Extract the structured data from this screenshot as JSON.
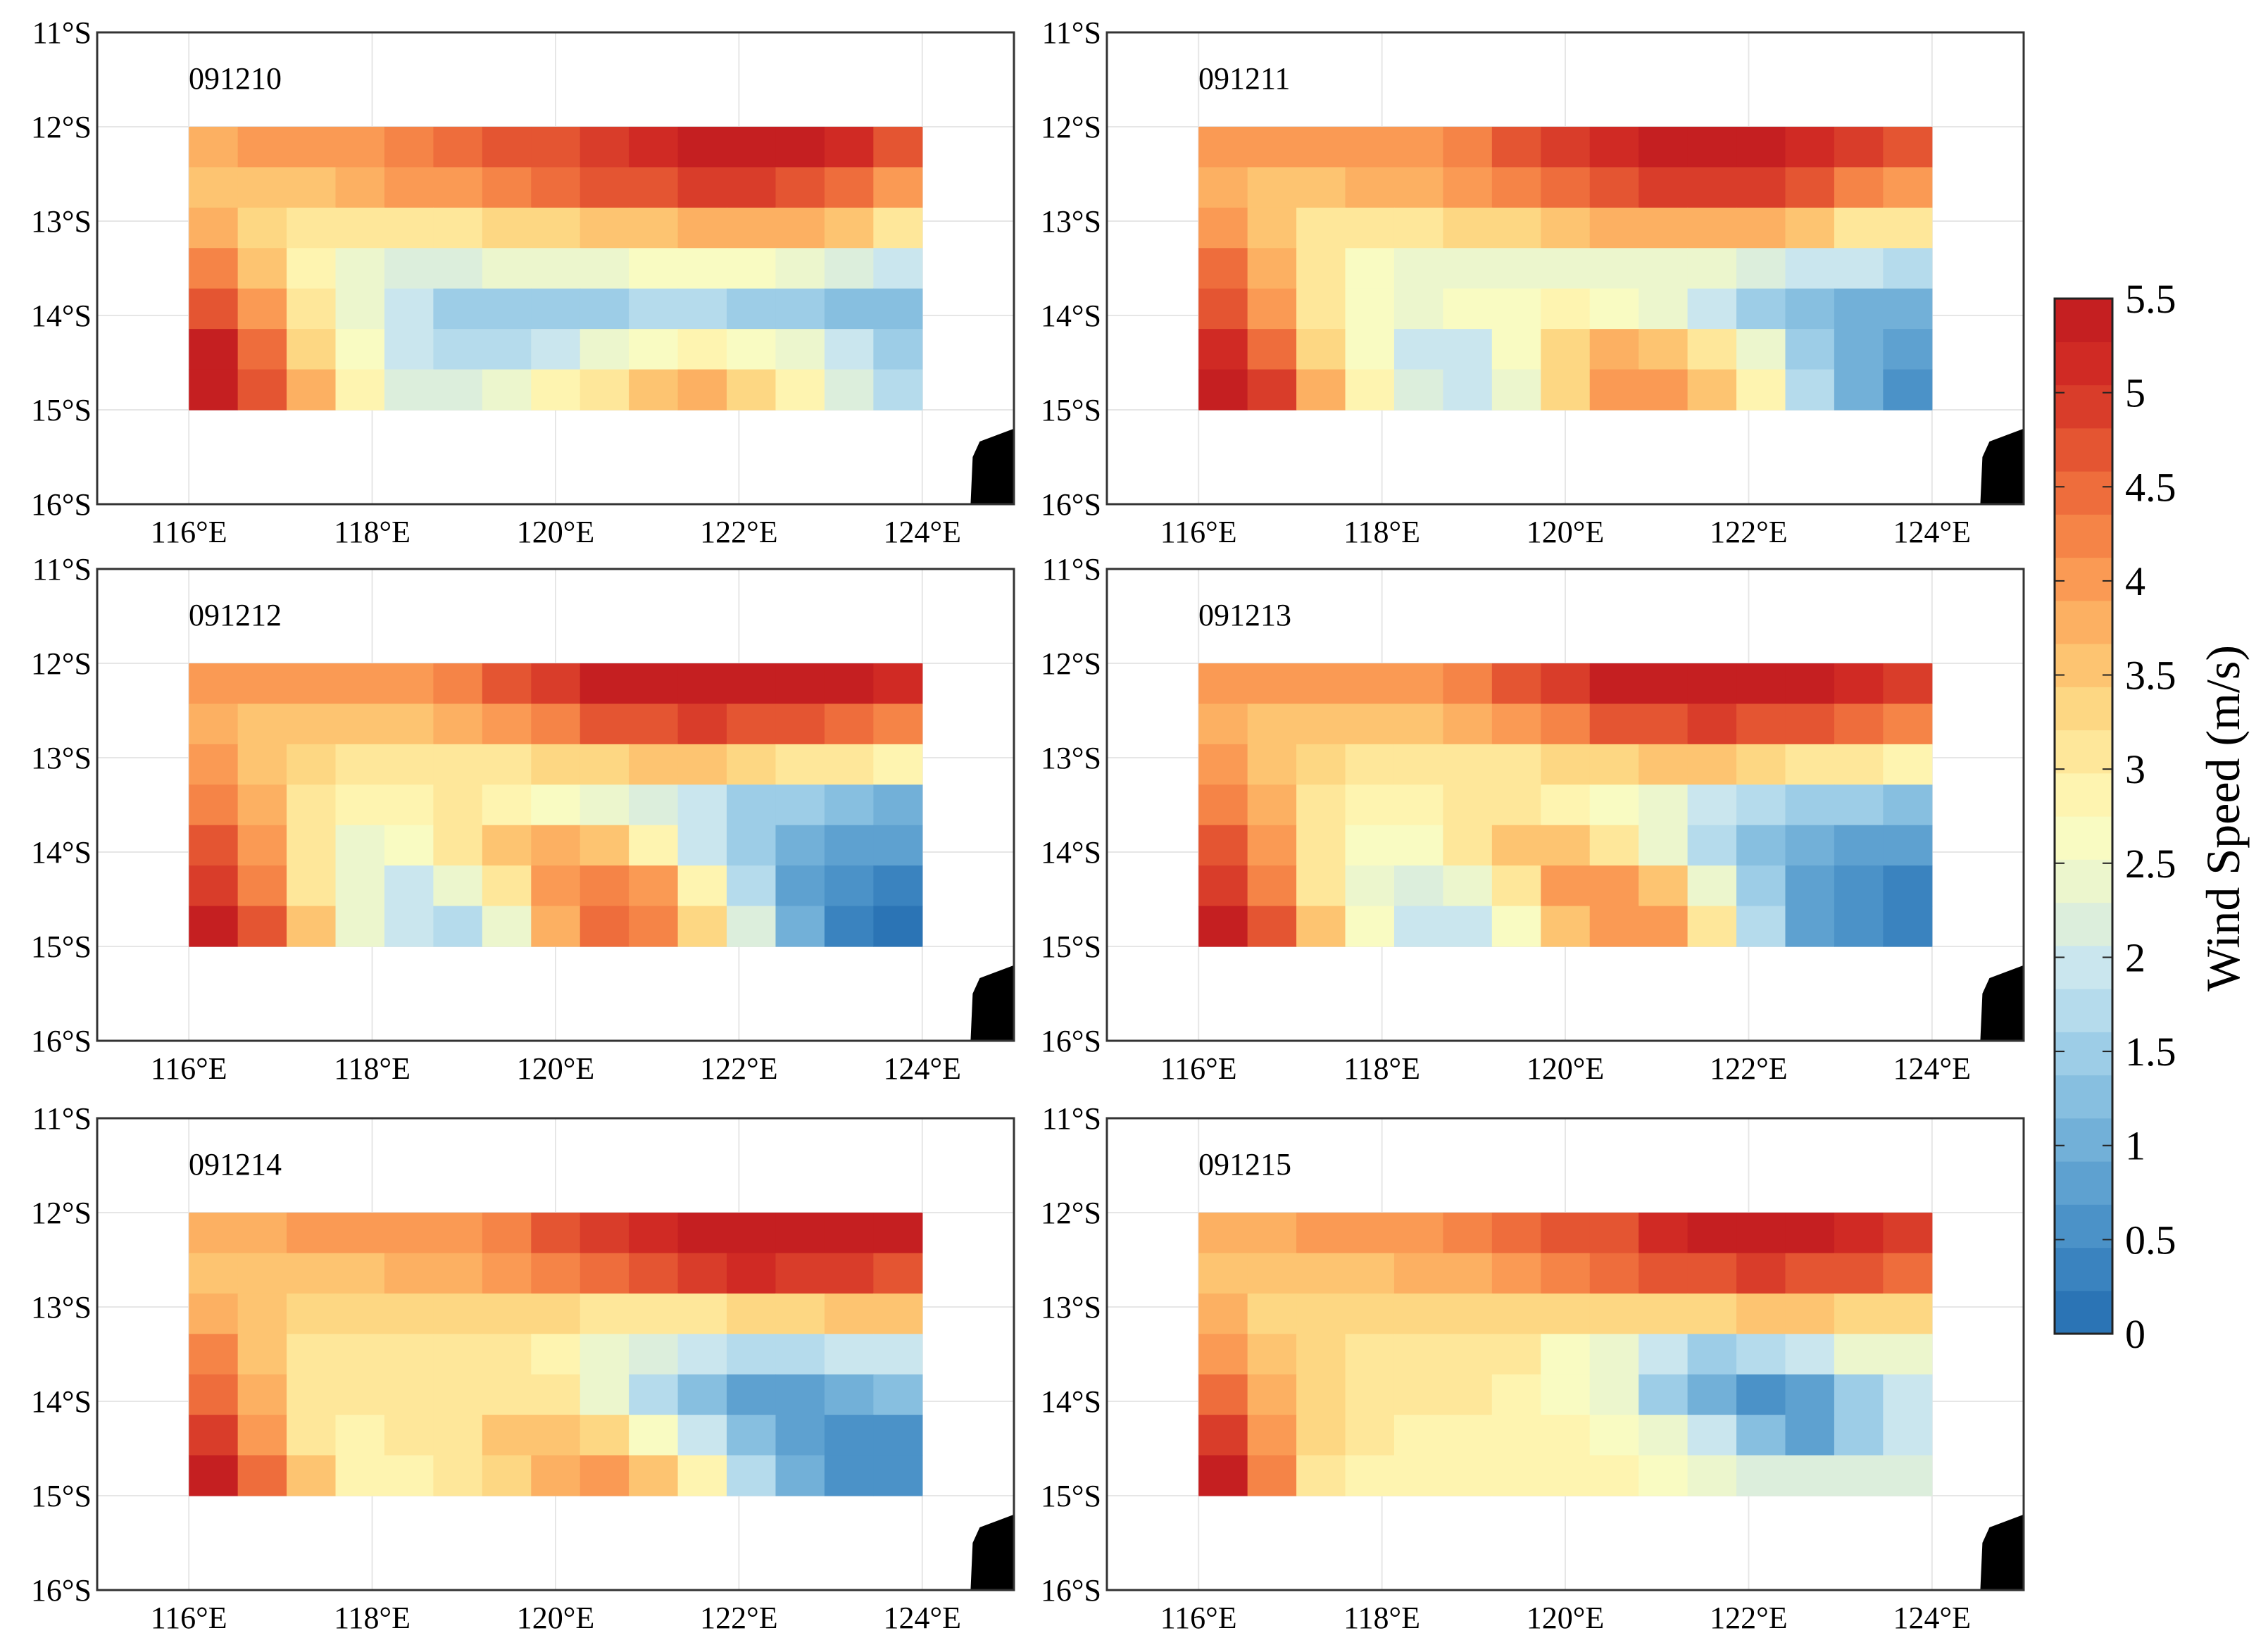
{
  "figure": {
    "colorbar": {
      "label": "Wind Speed (m/s)",
      "min": 0,
      "max": 5.5,
      "levels": 33,
      "tick_labels": [
        "0",
        "0.5",
        "1",
        "1.5",
        "2",
        "2.5",
        "3",
        "3.5",
        "4",
        "4.5",
        "5",
        "5.5"
      ],
      "colors": [
        "#2b74b5",
        "#3a83bf",
        "#4b92c8",
        "#5ea1d0",
        "#72b0d8",
        "#87bfe0",
        "#9dcde7",
        "#b5dbec",
        "#cae6ee",
        "#dceedc",
        "#ecf6cd",
        "#f9fbc2",
        "#fef4b0",
        "#fee79a",
        "#fdd783",
        "#fdc471",
        "#fcb062",
        "#fa9a54",
        "#f58447",
        "#ee6d3c",
        "#e45532",
        "#d93d2a",
        "#d02a24",
        "#c51f21"
      ]
    }
  },
  "chart_data": [
    {
      "type": "heatmap",
      "title": "091210",
      "x_tick_labels": [
        "116°E",
        "118°E",
        "120°E",
        "122°E",
        "124°E"
      ],
      "y_tick_labels": [
        "11°S",
        "12°S",
        "13°S",
        "14°S",
        "15°S",
        "16°S"
      ],
      "xlim": [
        115,
        125
      ],
      "ylim": [
        -16,
        -11
      ],
      "grid_extent": {
        "lon": [
          116,
          124
        ],
        "lat": [
          -15,
          -12
        ]
      },
      "value_unit": "m/s",
      "values": [
        [
          3.8,
          3.9,
          4.0,
          4.1,
          4.2,
          4.4,
          4.6,
          4.8,
          5.0,
          5.2,
          5.3,
          5.4,
          5.3,
          5.1,
          4.8
        ],
        [
          3.6,
          3.5,
          3.6,
          3.7,
          3.9,
          4.1,
          4.3,
          4.5,
          4.6,
          4.8,
          4.9,
          4.9,
          4.8,
          4.5,
          4.1
        ],
        [
          3.8,
          3.3,
          3.0,
          3.0,
          3.1,
          3.2,
          3.3,
          3.4,
          3.5,
          3.6,
          3.7,
          3.8,
          3.7,
          3.5,
          3.2
        ],
        [
          4.3,
          3.5,
          2.9,
          2.4,
          2.2,
          2.2,
          2.3,
          2.4,
          2.5,
          2.6,
          2.7,
          2.6,
          2.4,
          2.2,
          2.0
        ],
        [
          4.8,
          3.9,
          3.1,
          2.5,
          1.9,
          1.6,
          1.5,
          1.5,
          1.6,
          1.7,
          1.7,
          1.6,
          1.4,
          1.2,
          1.2
        ],
        [
          5.3,
          4.4,
          3.4,
          2.6,
          2.0,
          1.8,
          1.8,
          2.0,
          2.3,
          2.7,
          2.8,
          2.7,
          2.3,
          1.9,
          1.6
        ],
        [
          5.4,
          4.8,
          3.7,
          2.8,
          2.2,
          2.2,
          2.4,
          2.8,
          3.2,
          3.6,
          3.7,
          3.4,
          2.8,
          2.2,
          1.8
        ]
      ]
    },
    {
      "type": "heatmap",
      "title": "091211",
      "x_tick_labels": [
        "116°E",
        "118°E",
        "120°E",
        "122°E",
        "124°E"
      ],
      "y_tick_labels": [
        "11°S",
        "12°S",
        "13°S",
        "14°S",
        "15°S",
        "16°S"
      ],
      "xlim": [
        115,
        125
      ],
      "ylim": [
        -16,
        -11
      ],
      "grid_extent": {
        "lon": [
          116,
          124
        ],
        "lat": [
          -15,
          -12
        ]
      },
      "value_unit": "m/s",
      "values": [
        [
          3.9,
          3.9,
          3.9,
          4.0,
          4.1,
          4.3,
          4.6,
          4.9,
          5.2,
          5.4,
          5.5,
          5.4,
          5.2,
          5.0,
          4.8
        ],
        [
          3.7,
          3.6,
          3.6,
          3.7,
          3.8,
          4.0,
          4.2,
          4.4,
          4.7,
          4.9,
          5.0,
          4.9,
          4.6,
          4.3,
          4.0
        ],
        [
          4.0,
          3.5,
          3.2,
          3.1,
          3.2,
          3.3,
          3.4,
          3.6,
          3.7,
          3.8,
          3.8,
          3.7,
          3.5,
          3.2,
          3.0
        ],
        [
          4.4,
          3.7,
          3.0,
          2.7,
          2.5,
          2.4,
          2.4,
          2.4,
          2.4,
          2.4,
          2.3,
          2.2,
          2.0,
          1.9,
          1.7
        ],
        [
          4.8,
          4.0,
          3.1,
          2.6,
          2.4,
          2.6,
          2.7,
          2.8,
          2.6,
          2.3,
          1.9,
          1.5,
          1.3,
          1.1,
          1.0
        ],
        [
          5.1,
          4.5,
          3.4,
          2.6,
          2.0,
          2.0,
          2.6,
          3.3,
          3.7,
          3.6,
          3.1,
          2.4,
          1.6,
          1.0,
          0.7
        ],
        [
          5.4,
          4.9,
          3.8,
          2.8,
          2.1,
          1.9,
          2.5,
          3.4,
          4.0,
          4.0,
          3.6,
          2.8,
          1.8,
          1.1,
          0.6
        ]
      ]
    },
    {
      "type": "heatmap",
      "title": "091212",
      "x_tick_labels": [
        "116°E",
        "118°E",
        "120°E",
        "122°E",
        "124°E"
      ],
      "y_tick_labels": [
        "11°S",
        "12°S",
        "13°S",
        "14°S",
        "15°S",
        "16°S"
      ],
      "xlim": [
        115,
        125
      ],
      "ylim": [
        -16,
        -11
      ],
      "grid_extent": {
        "lon": [
          116,
          124
        ],
        "lat": [
          -15,
          -12
        ]
      },
      "value_unit": "m/s",
      "values": [
        [
          3.9,
          3.9,
          3.9,
          4.0,
          4.1,
          4.3,
          4.7,
          5.0,
          5.3,
          5.5,
          5.5,
          5.5,
          5.4,
          5.3,
          5.2
        ],
        [
          3.7,
          3.6,
          3.5,
          3.5,
          3.6,
          3.8,
          4.0,
          4.3,
          4.6,
          4.8,
          4.9,
          4.8,
          4.6,
          4.4,
          4.2
        ],
        [
          3.9,
          3.5,
          3.3,
          3.1,
          3.0,
          3.0,
          3.1,
          3.3,
          3.4,
          3.5,
          3.5,
          3.4,
          3.2,
          3.0,
          2.8
        ],
        [
          4.2,
          3.7,
          3.2,
          2.9,
          2.9,
          3.0,
          2.9,
          2.7,
          2.5,
          2.2,
          1.9,
          1.6,
          1.4,
          1.2,
          1.1
        ],
        [
          4.6,
          3.9,
          3.0,
          2.5,
          2.6,
          3.1,
          3.6,
          3.8,
          3.5,
          2.8,
          2.0,
          1.4,
          1.0,
          0.8,
          0.7
        ],
        [
          5.0,
          4.2,
          3.2,
          2.4,
          2.0,
          2.3,
          3.1,
          4.0,
          4.3,
          3.9,
          2.9,
          1.7,
          0.9,
          0.5,
          0.3
        ],
        [
          5.3,
          4.6,
          3.5,
          2.5,
          1.9,
          1.8,
          2.5,
          3.7,
          4.4,
          4.3,
          3.4,
          2.2,
          1.0,
          0.4,
          0.2
        ]
      ]
    },
    {
      "type": "heatmap",
      "title": "091213",
      "x_tick_labels": [
        "116°E",
        "118°E",
        "120°E",
        "122°E",
        "124°E"
      ],
      "y_tick_labels": [
        "11°S",
        "12°S",
        "13°S",
        "14°S",
        "15°S",
        "16°S"
      ],
      "xlim": [
        115,
        125
      ],
      "ylim": [
        -16,
        -11
      ],
      "grid_extent": {
        "lon": [
          116,
          124
        ],
        "lat": [
          -15,
          -12
        ]
      },
      "value_unit": "m/s",
      "values": [
        [
          3.9,
          3.9,
          3.9,
          4.0,
          4.1,
          4.3,
          4.7,
          5.0,
          5.3,
          5.4,
          5.5,
          5.5,
          5.4,
          5.2,
          5.0
        ],
        [
          3.7,
          3.6,
          3.5,
          3.5,
          3.6,
          3.8,
          4.0,
          4.3,
          4.6,
          4.8,
          4.9,
          4.8,
          4.6,
          4.4,
          4.2
        ],
        [
          3.9,
          3.5,
          3.3,
          3.1,
          3.0,
          3.0,
          3.1,
          3.3,
          3.4,
          3.5,
          3.5,
          3.4,
          3.2,
          3.0,
          2.8
        ],
        [
          4.2,
          3.7,
          3.2,
          2.9,
          2.9,
          3.1,
          3.1,
          2.9,
          2.6,
          2.3,
          2.0,
          1.7,
          1.5,
          1.4,
          1.3
        ],
        [
          4.6,
          3.9,
          3.0,
          2.6,
          2.7,
          3.2,
          3.6,
          3.6,
          3.2,
          2.5,
          1.8,
          1.3,
          1.0,
          0.8,
          0.8
        ],
        [
          5.0,
          4.2,
          3.2,
          2.4,
          2.1,
          2.4,
          3.2,
          3.9,
          4.0,
          3.5,
          2.5,
          1.5,
          0.8,
          0.5,
          0.4
        ],
        [
          5.3,
          4.6,
          3.5,
          2.6,
          2.0,
          1.9,
          2.6,
          3.6,
          4.1,
          3.9,
          3.0,
          1.8,
          0.9,
          0.5,
          0.4
        ]
      ]
    },
    {
      "type": "heatmap",
      "title": "091214",
      "x_tick_labels": [
        "116°E",
        "118°E",
        "120°E",
        "122°E",
        "124°E"
      ],
      "y_tick_labels": [
        "11°S",
        "12°S",
        "13°S",
        "14°S",
        "15°S",
        "16°S"
      ],
      "xlim": [
        115,
        125
      ],
      "ylim": [
        -16,
        -11
      ],
      "grid_extent": {
        "lon": [
          116,
          124
        ],
        "lat": [
          -15,
          -12
        ]
      },
      "value_unit": "m/s",
      "values": [
        [
          3.8,
          3.8,
          3.9,
          3.9,
          4.0,
          4.1,
          4.3,
          4.6,
          4.9,
          5.2,
          5.4,
          5.5,
          5.5,
          5.4,
          5.3
        ],
        [
          3.6,
          3.5,
          3.5,
          3.6,
          3.7,
          3.8,
          4.0,
          4.2,
          4.5,
          4.8,
          5.0,
          5.1,
          5.0,
          4.9,
          4.8
        ],
        [
          3.8,
          3.5,
          3.3,
          3.3,
          3.3,
          3.4,
          3.4,
          3.3,
          3.2,
          3.2,
          3.2,
          3.3,
          3.4,
          3.5,
          3.5
        ],
        [
          4.2,
          3.6,
          3.2,
          3.1,
          3.1,
          3.1,
          3.0,
          2.8,
          2.5,
          2.2,
          1.9,
          1.8,
          1.7,
          1.9,
          2.0
        ],
        [
          4.5,
          3.8,
          3.1,
          3.0,
          3.0,
          3.1,
          3.2,
          3.0,
          2.5,
          1.8,
          1.2,
          0.9,
          0.8,
          1.0,
          1.2
        ],
        [
          4.9,
          4.1,
          3.2,
          2.9,
          3.0,
          3.2,
          3.5,
          3.6,
          3.4,
          2.7,
          1.9,
          1.2,
          0.7,
          0.5,
          0.6
        ],
        [
          5.3,
          4.5,
          3.5,
          2.9,
          2.8,
          3.0,
          3.4,
          3.8,
          4.0,
          3.6,
          2.8,
          1.8,
          1.0,
          0.6,
          0.6
        ]
      ]
    },
    {
      "type": "heatmap",
      "title": "091215",
      "x_tick_labels": [
        "116°E",
        "118°E",
        "120°E",
        "122°E",
        "124°E"
      ],
      "y_tick_labels": [
        "11°S",
        "12°S",
        "13°S",
        "14°S",
        "15°S",
        "16°S"
      ],
      "xlim": [
        115,
        125
      ],
      "ylim": [
        -16,
        -11
      ],
      "grid_extent": {
        "lon": [
          116,
          124
        ],
        "lat": [
          -15,
          -12
        ]
      },
      "value_unit": "m/s",
      "values": [
        [
          3.8,
          3.8,
          3.9,
          4.0,
          4.1,
          4.2,
          4.4,
          4.6,
          4.8,
          5.1,
          5.3,
          5.4,
          5.3,
          5.1,
          4.9
        ],
        [
          3.6,
          3.5,
          3.5,
          3.6,
          3.7,
          3.8,
          4.0,
          4.2,
          4.4,
          4.6,
          4.8,
          4.9,
          4.8,
          4.6,
          4.4
        ],
        [
          3.8,
          3.4,
          3.3,
          3.3,
          3.3,
          3.4,
          3.4,
          3.4,
          3.4,
          3.4,
          3.4,
          3.5,
          3.5,
          3.4,
          3.3
        ],
        [
          4.1,
          3.6,
          3.3,
          3.2,
          3.2,
          3.1,
          3.0,
          2.7,
          2.3,
          1.9,
          1.6,
          1.7,
          2.0,
          2.3,
          2.5
        ],
        [
          4.5,
          3.8,
          3.3,
          3.2,
          3.1,
          3.0,
          2.9,
          2.7,
          2.3,
          1.6,
          1.0,
          0.6,
          0.9,
          1.5,
          2.0
        ],
        [
          4.9,
          4.0,
          3.3,
          3.0,
          2.9,
          2.9,
          2.9,
          2.8,
          2.7,
          2.4,
          1.9,
          1.3,
          0.9,
          1.4,
          1.9
        ],
        [
          5.3,
          4.3,
          3.2,
          2.9,
          2.9,
          2.9,
          2.9,
          2.9,
          2.9,
          2.7,
          2.5,
          2.2,
          2.1,
          2.1,
          2.2
        ]
      ]
    }
  ]
}
